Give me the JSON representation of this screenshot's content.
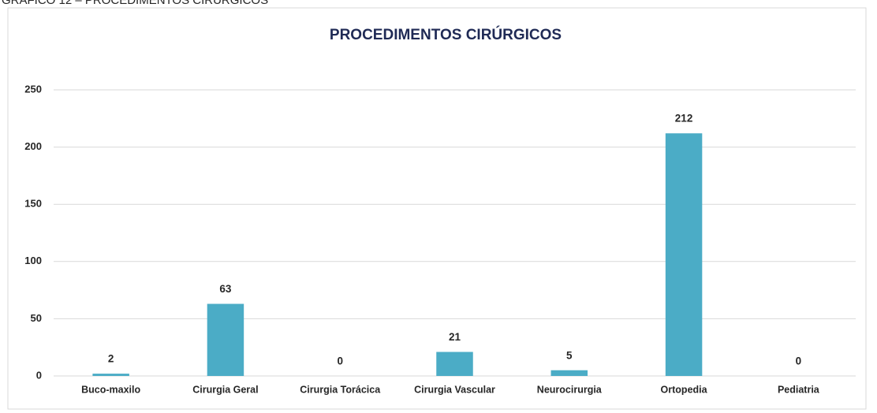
{
  "caption": "GRÁFICO 12 – PROCEDIMENTOS CIRÚRGICOS",
  "chart_data": {
    "type": "bar",
    "title": "PROCEDIMENTOS CIRÚRGICOS",
    "categories": [
      "Buco-maxilo",
      "Cirurgia Geral",
      "Cirurgia Torácica",
      "Cirurgia Vascular",
      "Neurocirurgia",
      "Ortopedia",
      "Pediatria"
    ],
    "values": [
      2,
      63,
      0,
      21,
      5,
      212,
      0
    ],
    "color": "#4bacc6",
    "ylim": [
      0,
      250
    ],
    "yticks": [
      0,
      50,
      100,
      150,
      200,
      250
    ],
    "grid": true
  }
}
